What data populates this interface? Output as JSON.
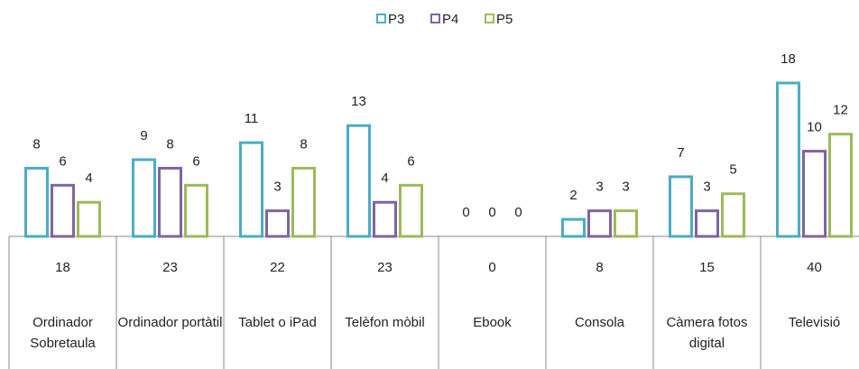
{
  "chart_data": {
    "type": "bar",
    "categories": [
      "Ordinador Sobretaula",
      "Ordinador portàtil",
      "Tablet o iPad",
      "Telèfon mòbil",
      "Ebook",
      "Consola",
      "Càmera fotos digital",
      "Televisió"
    ],
    "series": [
      {
        "name": "P3",
        "color": "#4bacc6",
        "values": [
          8,
          9,
          11,
          13,
          0,
          2,
          7,
          18
        ]
      },
      {
        "name": "P4",
        "color": "#8064a2",
        "values": [
          6,
          8,
          3,
          4,
          0,
          3,
          3,
          10
        ]
      },
      {
        "name": "P5",
        "color": "#9bbb59",
        "values": [
          4,
          6,
          8,
          6,
          0,
          3,
          5,
          12
        ]
      }
    ],
    "table_values": [
      18,
      23,
      22,
      23,
      0,
      8,
      15,
      40
    ],
    "ylim": [
      0,
      18
    ],
    "legend": "top"
  }
}
